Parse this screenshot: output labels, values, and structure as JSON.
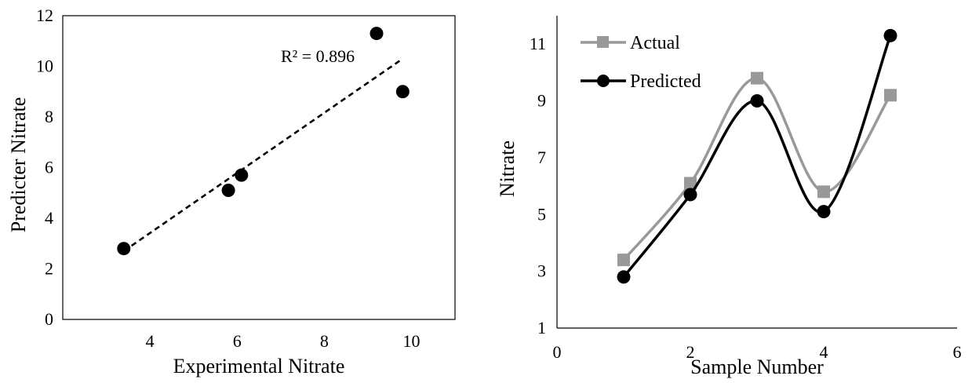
{
  "chart_data": [
    {
      "type": "scatter",
      "xlabel": "Experimental Nitrate",
      "ylabel": "Predicter Nitrate",
      "xlim": [
        2,
        11
      ],
      "ylim": [
        0,
        12
      ],
      "xticks": [
        4,
        6,
        8,
        10
      ],
      "yticks": [
        0,
        2,
        4,
        6,
        8,
        10,
        12
      ],
      "points": [
        {
          "x": 3.4,
          "y": 2.8
        },
        {
          "x": 5.8,
          "y": 5.1
        },
        {
          "x": 6.1,
          "y": 5.7
        },
        {
          "x": 9.2,
          "y": 11.3
        },
        {
          "x": 9.8,
          "y": 9.0
        }
      ],
      "trendline": {
        "x1": 3.4,
        "y1": 2.7,
        "x2": 9.8,
        "y2": 10.3,
        "style": "dashed"
      },
      "annotation": "R² = 0.896",
      "colors": {
        "points": "#000000",
        "trendline": "#000000"
      }
    },
    {
      "type": "line",
      "xlabel": "Sample Number",
      "ylabel": "Nitrate",
      "xlim": [
        0,
        6
      ],
      "ylim": [
        1,
        12
      ],
      "xticks": [
        0,
        2,
        4,
        6
      ],
      "yticks": [
        1,
        3,
        5,
        7,
        9,
        11
      ],
      "x": [
        1,
        2,
        3,
        4,
        5
      ],
      "smooth": true,
      "legend_position": "top-left",
      "series": [
        {
          "name": "Actual",
          "values": [
            3.4,
            6.1,
            9.8,
            5.8,
            9.2
          ],
          "color": "#999999",
          "marker": "square"
        },
        {
          "name": "Predicted",
          "values": [
            2.8,
            5.7,
            9.0,
            5.1,
            11.3
          ],
          "color": "#000000",
          "marker": "circle"
        }
      ]
    }
  ]
}
